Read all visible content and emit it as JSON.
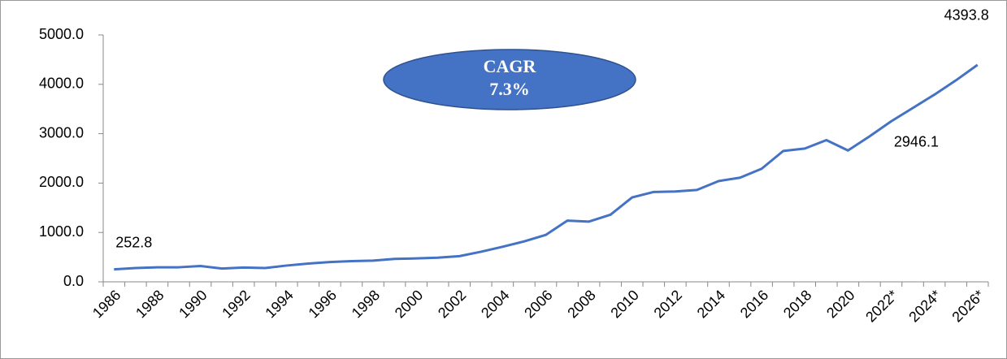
{
  "chart_data": {
    "type": "line",
    "categories": [
      "1986",
      null,
      "1988",
      null,
      "1990",
      null,
      "1992",
      null,
      "1994",
      null,
      "1996",
      null,
      "1998",
      null,
      "2000",
      null,
      "2002",
      null,
      "2004",
      null,
      "2006",
      null,
      "2008",
      null,
      "2010",
      null,
      "2012",
      null,
      "2014",
      null,
      "2016",
      null,
      "2018",
      null,
      "2020",
      null,
      "2022*",
      null,
      "2024*",
      null,
      "2026*"
    ],
    "series": [
      {
        "color": "#4472c4",
        "values": [
          252.8,
          280,
          295,
          295,
          320,
          270,
          290,
          280,
          330,
          370,
          400,
          420,
          430,
          465,
          475,
          490,
          520,
          610,
          710,
          820,
          950,
          1240,
          1220,
          1360,
          1710,
          1820,
          1830,
          1860,
          2040,
          2110,
          2290,
          2650,
          2700,
          2870,
          2660,
          2946.1,
          3250,
          3520,
          3790,
          4080,
          4393.8
        ],
        "value_labels": [
          "252.8",
          null,
          null,
          null,
          null,
          null,
          null,
          null,
          null,
          null,
          null,
          null,
          null,
          null,
          null,
          null,
          null,
          null,
          null,
          null,
          null,
          null,
          null,
          null,
          null,
          null,
          null,
          null,
          null,
          null,
          null,
          null,
          null,
          null,
          null,
          "2946.1",
          null,
          null,
          null,
          null,
          "4393.8"
        ]
      }
    ],
    "ylim": [
      0,
      5000
    ],
    "yticks": [
      {
        "value": 0,
        "label": "0.0"
      },
      {
        "value": 1000,
        "label": "1000.0"
      },
      {
        "value": 2000,
        "label": "2000.0"
      },
      {
        "value": 3000,
        "label": "3000.0"
      },
      {
        "value": 4000,
        "label": "4000.0"
      },
      {
        "value": 5000,
        "label": "5000.0"
      }
    ],
    "annotation": [
      "CAGR",
      "7.3%"
    ]
  }
}
